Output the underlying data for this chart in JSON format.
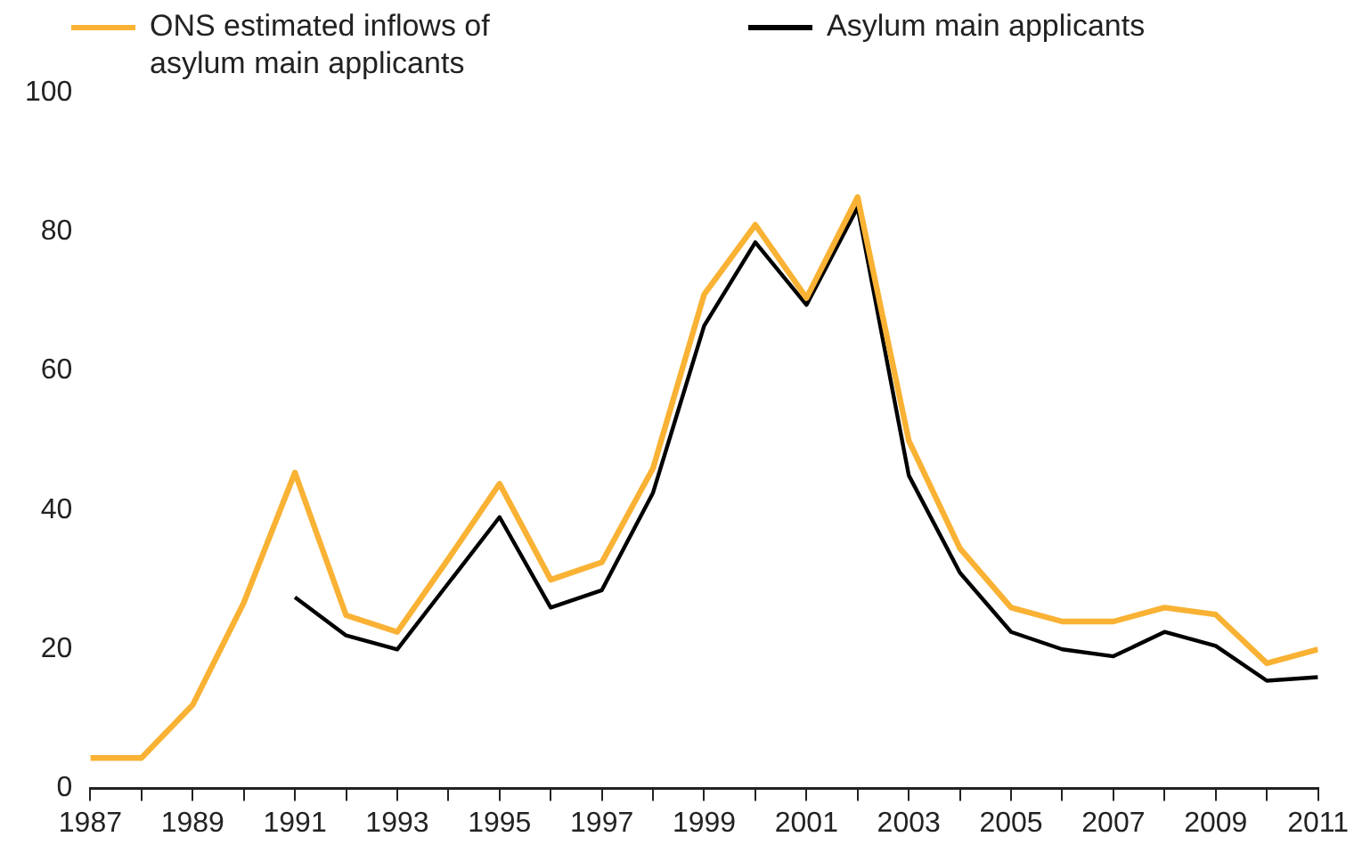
{
  "chart_data": {
    "type": "line",
    "x": [
      1987,
      1988,
      1989,
      1990,
      1991,
      1992,
      1993,
      1994,
      1995,
      1996,
      1997,
      1998,
      1999,
      2000,
      2001,
      2002,
      2003,
      2004,
      2005,
      2006,
      2007,
      2008,
      2009,
      2010,
      2011
    ],
    "series": [
      {
        "name": "ONS estimated inflows of asylum main applicants",
        "color": "#f9b234",
        "values": [
          4.4,
          4.4,
          12,
          26.7,
          45.4,
          24.9,
          22.5,
          33,
          43.8,
          30,
          32.5,
          46,
          71,
          81,
          70.5,
          85,
          50,
          34.5,
          26,
          24,
          24,
          26,
          25,
          18,
          20
        ]
      },
      {
        "name": "Asylum main applicants",
        "color": "#000000",
        "values": [
          null,
          null,
          null,
          null,
          27.5,
          22,
          20,
          29.5,
          39,
          26,
          28.5,
          42.5,
          66.5,
          78.5,
          69.5,
          83.5,
          45,
          31,
          22.5,
          20,
          19,
          22.5,
          20.5,
          15.5,
          16
        ]
      }
    ],
    "xlim": [
      1987,
      2011
    ],
    "xticks": [
      1987,
      {
        "value": 1988,
        "label": null
      },
      1989,
      {
        "value": 1990,
        "label": null
      },
      1991,
      {
        "value": 1992,
        "label": null
      },
      1993,
      {
        "value": 1994,
        "label": null
      },
      1995,
      {
        "value": 1996,
        "label": null
      },
      1997,
      {
        "value": 1998,
        "label": null
      },
      1999,
      {
        "value": 2000,
        "label": null
      },
      2001,
      {
        "value": 2002,
        "label": null
      },
      2003,
      {
        "value": 2004,
        "label": null
      },
      2005,
      {
        "value": 2006,
        "label": null
      },
      2007,
      {
        "value": 2008,
        "label": null
      },
      2009,
      {
        "value": 2010,
        "label": null
      },
      2011
    ],
    "ylim": [
      0,
      100
    ],
    "yticks": [
      0,
      20,
      40,
      60,
      80,
      100
    ],
    "grid": false,
    "legend": "top",
    "marker": "none",
    "line_style": "solid"
  }
}
